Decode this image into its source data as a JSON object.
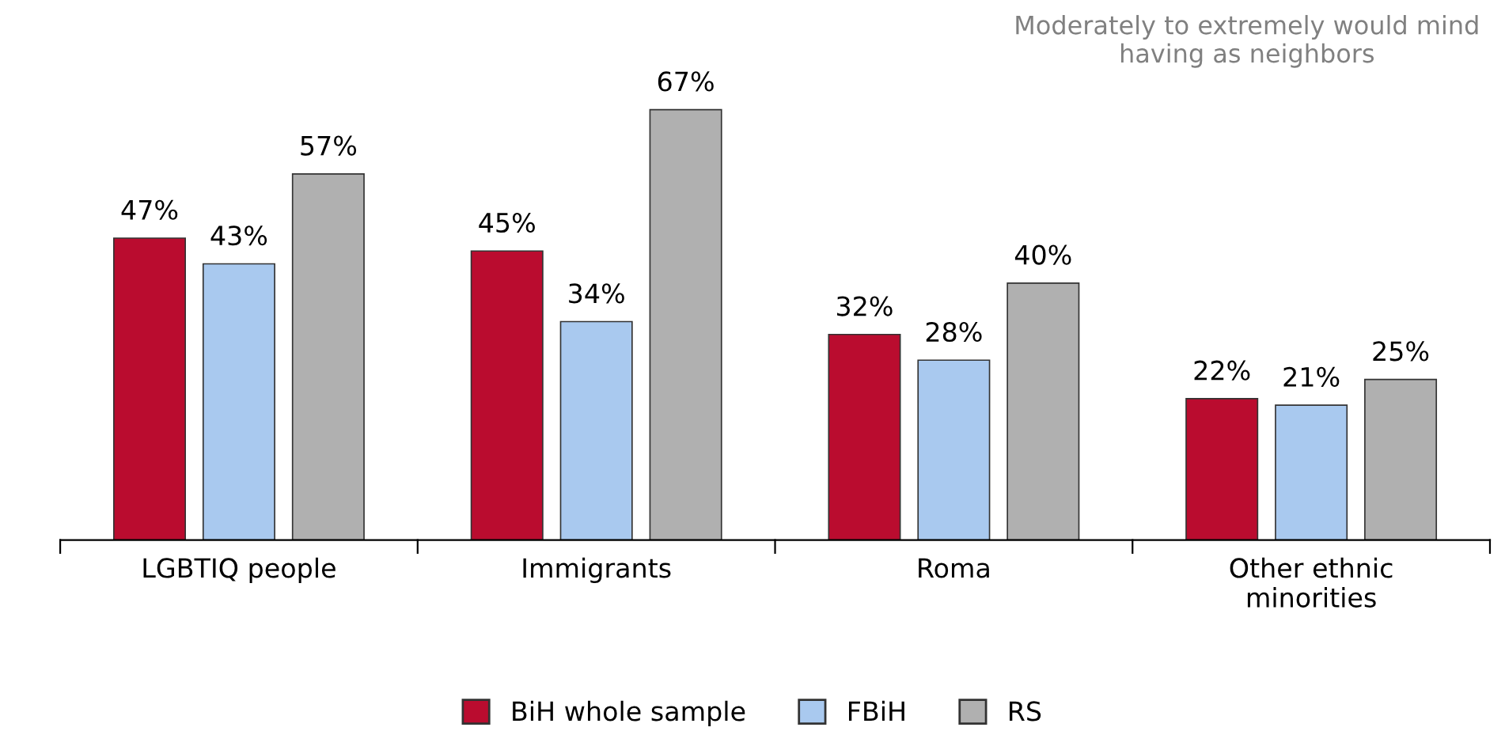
{
  "chart_data": {
    "type": "bar",
    "categories": [
      "LGBTIQ people",
      "Immigrants",
      "Roma",
      "Other ethnic\nminorities"
    ],
    "series": [
      {
        "name": "BiH whole sample",
        "color": "#ba0c2f",
        "values": [
          47,
          45,
          32,
          22
        ],
        "value_labels": [
          "47%",
          "45%",
          "32%",
          "22%"
        ]
      },
      {
        "name": "FBiH",
        "color": "#a9c9ef",
        "values": [
          43,
          34,
          28,
          21
        ],
        "value_labels": [
          "43%",
          "34%",
          "28%",
          "21%"
        ]
      },
      {
        "name": "RS",
        "color": "#b0b0b0",
        "values": [
          57,
          67,
          40,
          25
        ],
        "value_labels": [
          "57%",
          "67%",
          "40%",
          "25%"
        ]
      }
    ],
    "annotations": [
      "Moderately to extremely would mind\nhaving as neighbors"
    ],
    "legend": "bottom",
    "grid": false
  }
}
